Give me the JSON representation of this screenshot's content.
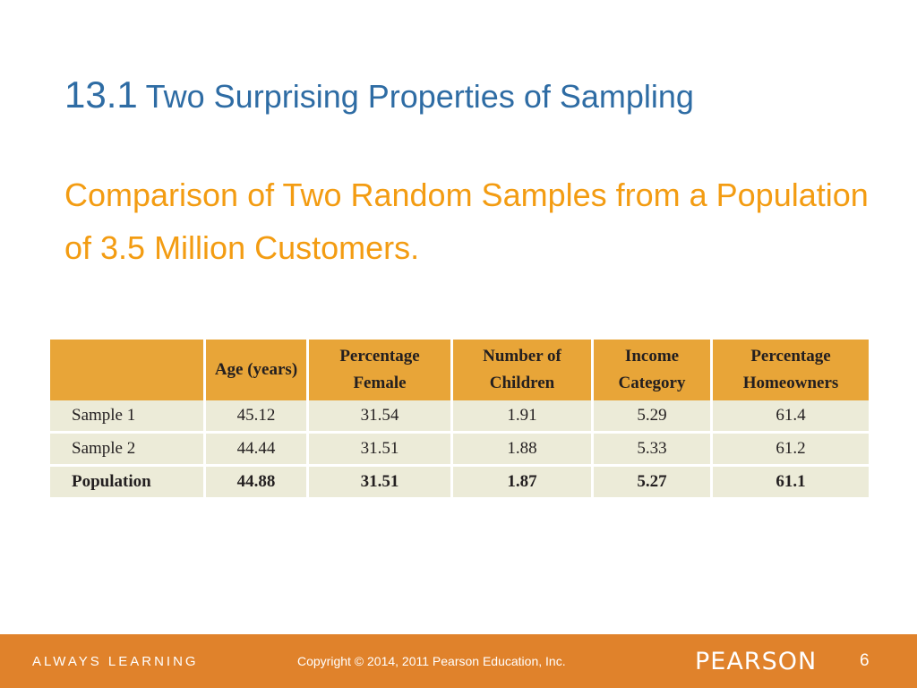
{
  "slide": {
    "title_number": "13.1",
    "title_text": "Two Surprising Properties of Sampling",
    "subtitle": "Comparison of Two Random Samples from a Population of 3.5 Million Customers."
  },
  "table": {
    "headers": [
      "",
      "Age (years)",
      "Percentage Female",
      "Number of Children",
      "Income Category",
      "Percentage Homeowners"
    ],
    "rows": [
      [
        "Sample 1",
        "45.12",
        "31.54",
        "1.91",
        "5.29",
        "61.4"
      ],
      [
        "Sample 2",
        "44.44",
        "31.51",
        "1.88",
        "5.33",
        "61.2"
      ],
      [
        "Population",
        "44.88",
        "31.51",
        "1.87",
        "5.27",
        "61.1"
      ]
    ]
  },
  "footer": {
    "tagline": "ALWAYS LEARNING",
    "copyright": "Copyright © 2014, 2011 Pearson Education, Inc.",
    "brand": "PEARSON",
    "page_number": "6"
  },
  "colors": {
    "title": "#2E6CA4",
    "subtitle": "#F39C12",
    "table_header": "#E8A538",
    "table_row": "#ECEBD8",
    "footer_band": "#E0822B"
  }
}
